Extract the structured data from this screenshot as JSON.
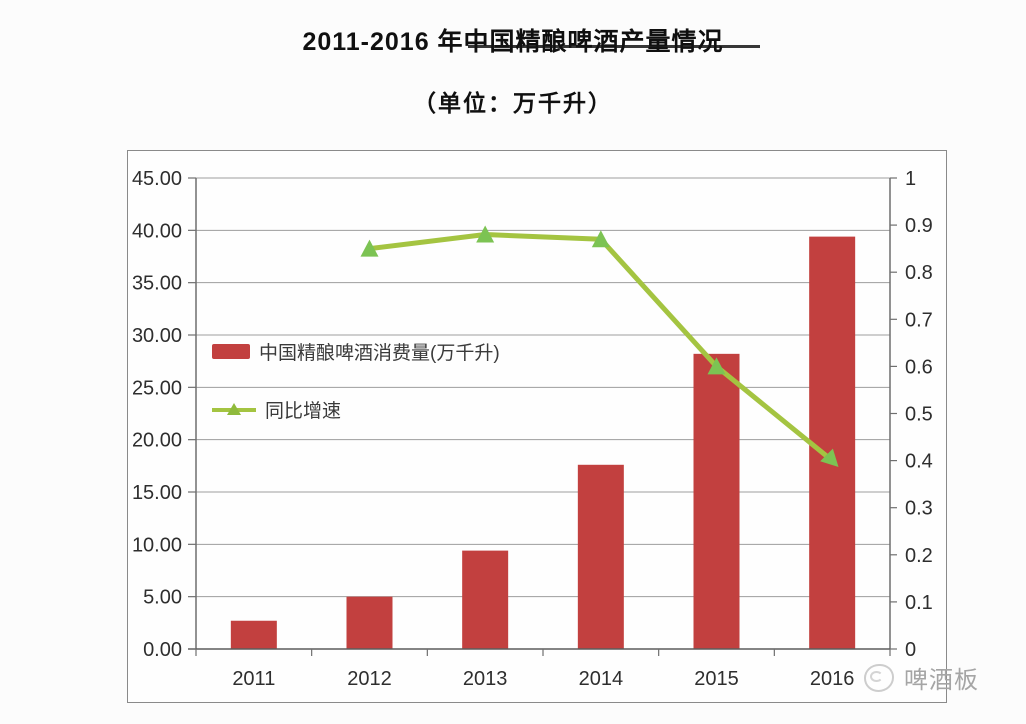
{
  "page": {
    "title": "2011-2016 年中国精酿啤酒产量情况",
    "subtitle": "（单位：万千升）",
    "watermark_text": "啤酒板"
  },
  "chart_data": {
    "type": "combo",
    "title": "2011-2016 年中国精酿啤酒产量情况",
    "subtitle_unit": "（单位：万千升）",
    "categories": [
      "2011",
      "2012",
      "2013",
      "2014",
      "2015",
      "2016"
    ],
    "series": [
      {
        "name": "中国精酿啤酒消费量(万千升)",
        "type": "bar",
        "axis": "left",
        "values": [
          2.7,
          5.0,
          9.4,
          17.6,
          28.2,
          39.4
        ],
        "color": "#c2403f"
      },
      {
        "name": "同比增速",
        "type": "line",
        "axis": "right",
        "values": [
          null,
          0.85,
          0.88,
          0.87,
          0.6,
          0.4
        ],
        "color": "#a4c441",
        "marker": "triangle",
        "marker_color": "#7cc353",
        "marker_rotations": [
          0,
          0,
          0,
          0,
          135
        ]
      }
    ],
    "left_axis": {
      "min": 0,
      "max": 45,
      "step": 5,
      "tick_labels": [
        "0.00",
        "5.00",
        "10.00",
        "15.00",
        "20.00",
        "25.00",
        "30.00",
        "35.00",
        "40.00",
        "45.00"
      ]
    },
    "right_axis": {
      "min": 0,
      "max": 1,
      "step": 0.1,
      "tick_labels": [
        "0",
        "0.1",
        "0.2",
        "0.3",
        "0.4",
        "0.5",
        "0.6",
        "0.7",
        "0.8",
        "0.9",
        "1"
      ]
    },
    "grid": true,
    "legend_position": "inside-upper-left"
  }
}
